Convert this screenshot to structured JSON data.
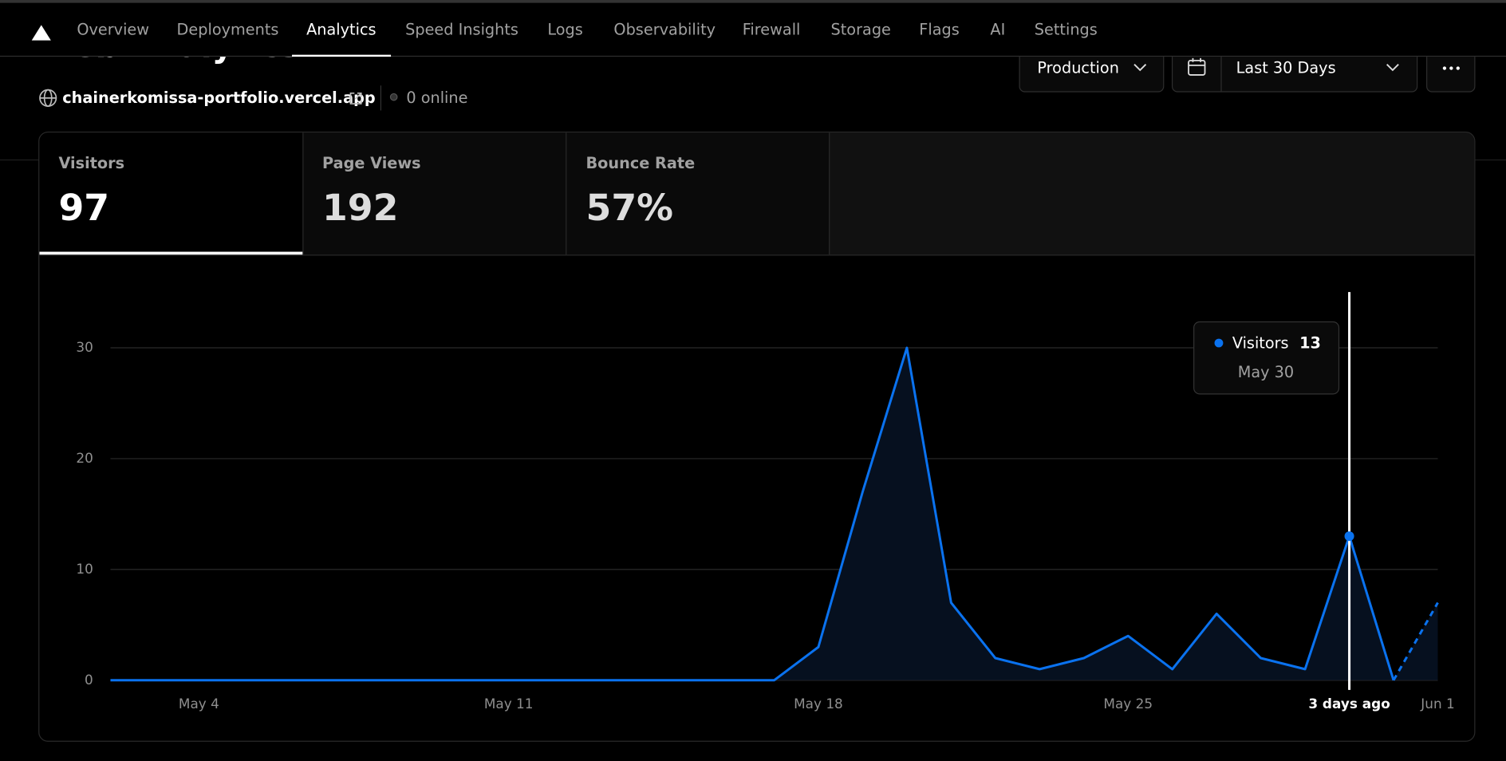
{
  "nav": {
    "tabs": [
      "Overview",
      "Deployments",
      "Analytics",
      "Speed Insights",
      "Logs",
      "Observability",
      "Firewall",
      "Storage",
      "Flags",
      "AI",
      "Settings"
    ],
    "active": 2
  },
  "header": {
    "title": "Web Analytics",
    "domain": "chainerkomissa-portfolio.vercel.app",
    "online": "0 online"
  },
  "controls": {
    "environment": "Production",
    "range": "Last 30 Days"
  },
  "metrics": [
    {
      "label": "Visitors",
      "value": "97"
    },
    {
      "label": "Page Views",
      "value": "192"
    },
    {
      "label": "Bounce Rate",
      "value": "57%"
    }
  ],
  "metrics_active": 0,
  "chart_data": {
    "type": "area",
    "categories": [
      null,
      null,
      "May 4",
      null,
      null,
      null,
      null,
      null,
      null,
      "May 11",
      null,
      null,
      null,
      null,
      null,
      null,
      "May 18",
      null,
      null,
      null,
      null,
      null,
      null,
      "May 25",
      null,
      null,
      null,
      null,
      "3 days ago",
      null,
      "Jun 1"
    ],
    "series": [
      {
        "name": "Visitors",
        "color": "#0a72ef",
        "values": [
          0,
          0,
          0,
          0,
          0,
          0,
          0,
          0,
          0,
          0,
          0,
          0,
          0,
          0,
          0,
          0,
          3,
          17,
          30,
          7,
          2,
          1,
          2,
          4,
          1,
          6,
          2,
          1,
          13,
          0,
          7
        ]
      }
    ],
    "ylim": [
      0,
      30
    ],
    "yticks": [
      0,
      10,
      20,
      30
    ],
    "grid": true,
    "incomplete_last": true,
    "tooltip": {
      "index": 28,
      "date": "May 30"
    }
  }
}
